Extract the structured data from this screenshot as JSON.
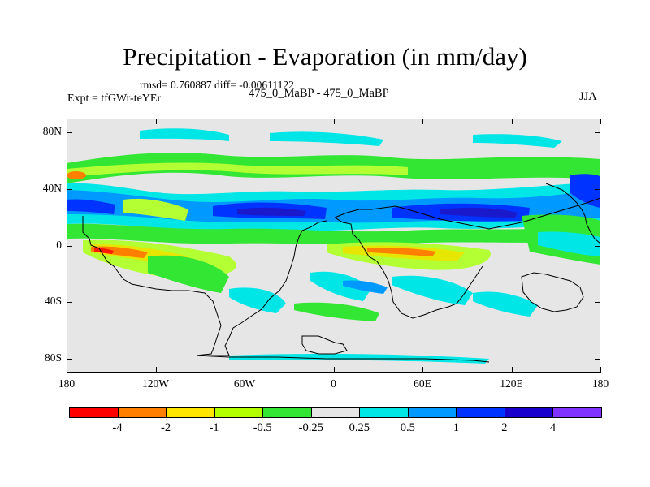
{
  "title": "Precipitation - Evaporation (in mm/day)",
  "stats": "rmsd= 0.760887 diff= -0.00611122",
  "experiment": "Expt = tfGWr-teYEr",
  "subtitle": "475_0_MaBP - 475_0_MaBP",
  "season": "JJA",
  "y_axis": {
    "labels": [
      "80N",
      "40N",
      "0",
      "40S",
      "80S"
    ],
    "values": [
      80,
      40,
      0,
      -40,
      -80
    ],
    "range": [
      -90,
      90
    ]
  },
  "x_axis": {
    "labels": [
      "180",
      "120W",
      "60W",
      "0",
      "60E",
      "120E",
      "180"
    ],
    "values": [
      -180,
      -120,
      -60,
      0,
      60,
      120,
      180
    ],
    "range": [
      -180,
      180
    ]
  },
  "colorbar": {
    "labels": [
      "-4",
      "-2",
      "-1",
      "-0.5",
      "-0.25",
      "0.25",
      "0.5",
      "1",
      "2",
      "4"
    ],
    "colors": [
      "#ff0000",
      "#ff8000",
      "#ffe600",
      "#b3ff00",
      "#33e633",
      "#e6e6e6",
      "#00e6e6",
      "#0099ff",
      "#0033ff",
      "#1a00cc",
      "#8033ff"
    ]
  },
  "field_colors": {
    "neg4": "#ff1a00",
    "neg2": "#ff8000",
    "neg1": "#e6e600",
    "neg05": "#b3ff33",
    "neg025": "#33e633",
    "pos025": "#00e6e6",
    "pos05": "#0099ff",
    "pos1": "#0033ff",
    "pos2": "#1a1acc"
  }
}
